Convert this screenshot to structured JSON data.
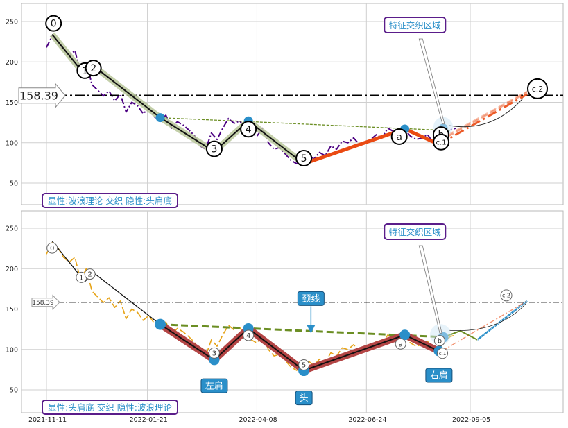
{
  "colors": {
    "price_top": "#4b0082",
    "price_bottom": "#e6a317",
    "wave_line": "#111111",
    "wave_halo": "#b8c79a",
    "orange": "#ea4a12",
    "neckline": "#6b8e23",
    "hs_fill": "#b34545",
    "node": "#2a8fc9",
    "label_purple": "#5a1d8a",
    "label_text": "#2a8fc9",
    "callout_bg": "#2a8fc9"
  },
  "chart_data": [
    {
      "type": "line",
      "panel": "top",
      "ylim": [
        25,
        270
      ],
      "yticks": [
        50,
        100,
        150,
        200,
        250
      ],
      "xlim": [
        "2021-11-01",
        "2022-10-20"
      ],
      "horizontal_line": {
        "value": 158.39,
        "label": "158.39",
        "style": "dash-dot"
      },
      "price": {
        "x": [
          "2021-11-11",
          "2021-11-15",
          "2021-11-19",
          "2021-11-23",
          "2021-11-27",
          "2021-12-01",
          "2021-12-05",
          "2021-12-09",
          "2021-12-13",
          "2021-12-17",
          "2021-12-21",
          "2021-12-25",
          "2021-12-29",
          "2022-01-02",
          "2022-01-06",
          "2022-01-10",
          "2022-01-14",
          "2022-01-18",
          "2022-01-22",
          "2022-01-26",
          "2022-01-30",
          "2022-02-03",
          "2022-02-07",
          "2022-02-11",
          "2022-02-15",
          "2022-02-19",
          "2022-02-23",
          "2022-02-27",
          "2022-03-03",
          "2022-03-07",
          "2022-03-11",
          "2022-03-15",
          "2022-03-19",
          "2022-03-23",
          "2022-03-27",
          "2022-03-31",
          "2022-04-04",
          "2022-04-08",
          "2022-04-12",
          "2022-04-16",
          "2022-04-20",
          "2022-04-24",
          "2022-04-28",
          "2022-05-02",
          "2022-05-06",
          "2022-05-10",
          "2022-05-14",
          "2022-05-18",
          "2022-05-22",
          "2022-05-26",
          "2022-05-30",
          "2022-06-03",
          "2022-06-07",
          "2022-06-11",
          "2022-06-15",
          "2022-06-19",
          "2022-06-23",
          "2022-06-27",
          "2022-07-01",
          "2022-07-05",
          "2022-07-09",
          "2022-07-13",
          "2022-07-17",
          "2022-07-21",
          "2022-07-25",
          "2022-07-29",
          "2022-08-02",
          "2022-08-06",
          "2022-08-10",
          "2022-08-14",
          "2022-08-18",
          "2022-08-22",
          "2022-08-26"
        ],
        "y": [
          218,
          232,
          226,
          214,
          208,
          214,
          186,
          200,
          172,
          165,
          158,
          164,
          152,
          160,
          138,
          150,
          146,
          136,
          142,
          132,
          128,
          134,
          118,
          126,
          122,
          116,
          109,
          96,
          92,
          112,
          104,
          118,
          130,
          124,
          127,
          116,
          112,
          108,
          118,
          100,
          92,
          94,
          86,
          78,
          74,
          82,
          86,
          80,
          88,
          84,
          96,
          92,
          102,
          100,
          106,
          98,
          100,
          104,
          110,
          106,
          118,
          114,
          112,
          116,
          108,
          104,
          106,
          110,
          100,
          102,
          110,
          116,
          118
        ]
      },
      "waves": [
        {
          "label": "0",
          "x": "2021-11-15",
          "y": 234
        },
        {
          "label": "1",
          "x": "2021-12-08",
          "y": 184
        },
        {
          "label": "2",
          "x": "2021-12-14",
          "y": 195
        },
        {
          "label": "",
          "x": "2022-01-30",
          "y": 131
        },
        {
          "label": "3",
          "x": "2022-03-09",
          "y": 89
        },
        {
          "label": "4",
          "x": "2022-04-02",
          "y": 127
        },
        {
          "label": "5",
          "x": "2022-05-11",
          "y": 74
        }
      ],
      "orange_path": [
        {
          "label": "",
          "x": "2022-05-11",
          "y": 74
        },
        {
          "label": "a",
          "x": "2022-07-21",
          "y": 117
        },
        {
          "label": "b",
          "x": "2022-08-14",
          "y": 98
        },
        {
          "label": "c.1",
          "x": "2022-08-17",
          "y": 118
        }
      ],
      "projection": {
        "label": "c.2",
        "x": "2022-10-15",
        "y": 160
      },
      "neckline": [
        {
          "x": "2022-01-30",
          "y": 131
        },
        {
          "x": "2022-08-22",
          "y": 115
        }
      ],
      "region_callout": "特征交织区域",
      "legend_label": "显性:波浪理论 交织 隐性:头肩底"
    },
    {
      "type": "line",
      "panel": "bottom",
      "ylim": [
        25,
        275
      ],
      "yticks": [
        50,
        100,
        150,
        200,
        250
      ],
      "xlim": [
        "2021-11-01",
        "2022-10-20"
      ],
      "xticks": [
        "2021-11-11",
        "2022-01-21",
        "2022-04-08",
        "2022-06-24",
        "2022-09-05"
      ],
      "horizontal_line": {
        "value": 158.39,
        "label": "158.39",
        "style": "dash-dot"
      },
      "price": {
        "x": [
          "2021-11-11",
          "2021-11-15",
          "2021-11-19",
          "2021-11-23",
          "2021-11-27",
          "2021-12-01",
          "2021-12-05",
          "2021-12-09",
          "2021-12-13",
          "2021-12-17",
          "2021-12-21",
          "2021-12-25",
          "2021-12-29",
          "2022-01-02",
          "2022-01-06",
          "2022-01-10",
          "2022-01-14",
          "2022-01-18",
          "2022-01-22",
          "2022-01-26",
          "2022-01-30",
          "2022-02-03",
          "2022-02-07",
          "2022-02-11",
          "2022-02-15",
          "2022-02-19",
          "2022-02-23",
          "2022-02-27",
          "2022-03-03",
          "2022-03-07",
          "2022-03-11",
          "2022-03-15",
          "2022-03-19",
          "2022-03-23",
          "2022-03-27",
          "2022-03-31",
          "2022-04-04",
          "2022-04-08",
          "2022-04-12",
          "2022-04-16",
          "2022-04-20",
          "2022-04-24",
          "2022-04-28",
          "2022-05-02",
          "2022-05-06",
          "2022-05-10",
          "2022-05-14",
          "2022-05-18",
          "2022-05-22",
          "2022-05-26",
          "2022-05-30",
          "2022-06-03",
          "2022-06-07",
          "2022-06-11",
          "2022-06-15",
          "2022-06-19",
          "2022-06-23",
          "2022-06-27",
          "2022-07-01",
          "2022-07-05",
          "2022-07-09",
          "2022-07-13",
          "2022-07-17",
          "2022-07-21",
          "2022-07-25",
          "2022-07-29",
          "2022-08-02",
          "2022-08-06",
          "2022-08-10",
          "2022-08-14",
          "2022-08-18",
          "2022-08-22",
          "2022-08-26"
        ],
        "y": [
          218,
          232,
          226,
          214,
          208,
          214,
          186,
          200,
          172,
          165,
          158,
          164,
          152,
          160,
          138,
          150,
          146,
          136,
          142,
          132,
          128,
          134,
          118,
          126,
          122,
          116,
          109,
          96,
          92,
          112,
          104,
          118,
          130,
          124,
          127,
          116,
          112,
          108,
          118,
          100,
          92,
          94,
          86,
          78,
          74,
          82,
          86,
          80,
          88,
          84,
          96,
          92,
          102,
          100,
          106,
          98,
          100,
          104,
          110,
          106,
          118,
          114,
          112,
          116,
          108,
          104,
          106,
          110,
          100,
          102,
          110,
          116,
          118
        ]
      },
      "waves": [
        {
          "label": "0",
          "x": "2021-11-15",
          "y": 234
        },
        {
          "label": "1",
          "x": "2021-12-08",
          "y": 184
        },
        {
          "label": "2",
          "x": "2021-12-14",
          "y": 195
        },
        {
          "label": "",
          "x": "2022-01-30",
          "y": 131
        },
        {
          "label": "3",
          "x": "2022-03-09",
          "y": 87
        },
        {
          "label": "4",
          "x": "2022-04-02",
          "y": 126
        },
        {
          "label": "5",
          "x": "2022-05-11",
          "y": 74
        },
        {
          "label": "a",
          "x": "2022-07-21",
          "y": 118
        },
        {
          "label": "b",
          "x": "2022-08-14",
          "y": 98
        },
        {
          "label": "c.1",
          "x": "2022-08-17",
          "y": 115
        }
      ],
      "projection": {
        "label": "c.2",
        "x": "2022-10-15",
        "y": 160
      },
      "neckline": [
        {
          "x": "2022-01-30",
          "y": 131
        },
        {
          "x": "2022-08-22",
          "y": 115
        }
      ],
      "callouts": [
        {
          "text": "颈线",
          "x": "2022-05-16",
          "y": 163
        },
        {
          "text": "左肩",
          "x": "2022-03-09",
          "y": 55
        },
        {
          "text": "头",
          "x": "2022-05-11",
          "y": 40
        },
        {
          "text": "右肩",
          "x": "2022-08-14",
          "y": 68
        }
      ],
      "region_callout": "特征交织区域",
      "legend_label": "显性:头肩底 交织 隐性:波浪理论"
    }
  ]
}
